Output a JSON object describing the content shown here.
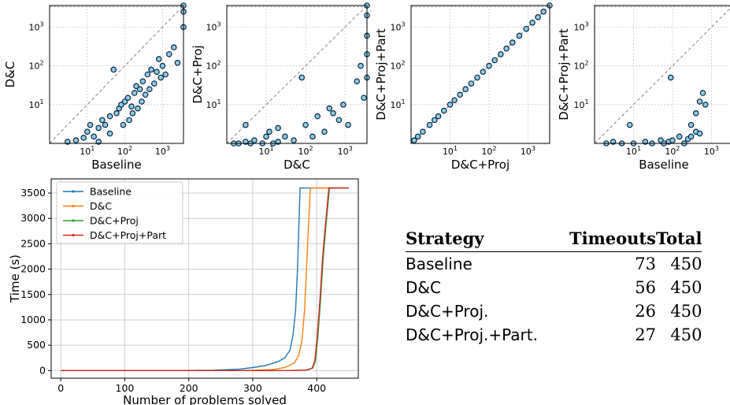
{
  "chart_data": [
    {
      "type": "scatter",
      "xlabel": "Baseline",
      "ylabel": "D&C",
      "scale": "log",
      "xlim": [
        1,
        3600
      ],
      "ylim": [
        1,
        3600
      ],
      "ticks": [
        "10^1",
        "10^2",
        "10^3"
      ],
      "diagonal": true,
      "points": [
        [
          3,
          1.1
        ],
        [
          5,
          1.2
        ],
        [
          8,
          1.4
        ],
        [
          10,
          2
        ],
        [
          12,
          3
        ],
        [
          15,
          1.5
        ],
        [
          20,
          2.5
        ],
        [
          25,
          4
        ],
        [
          30,
          3
        ],
        [
          40,
          5
        ],
        [
          50,
          80
        ],
        [
          60,
          6
        ],
        [
          70,
          8
        ],
        [
          80,
          10
        ],
        [
          100,
          12
        ],
        [
          120,
          15
        ],
        [
          150,
          9
        ],
        [
          180,
          20
        ],
        [
          200,
          30
        ],
        [
          250,
          25
        ],
        [
          300,
          40
        ],
        [
          400,
          60
        ],
        [
          500,
          80
        ],
        [
          700,
          70
        ],
        [
          800,
          150
        ],
        [
          1000,
          100
        ],
        [
          1500,
          200
        ],
        [
          2000,
          300
        ],
        [
          3600,
          1000
        ],
        [
          3600,
          2500
        ],
        [
          20,
          1.1
        ],
        [
          40,
          1.8
        ],
        [
          90,
          3
        ],
        [
          130,
          4
        ],
        [
          160,
          6
        ],
        [
          220,
          8
        ],
        [
          280,
          12
        ],
        [
          350,
          18
        ],
        [
          450,
          25
        ],
        [
          600,
          35
        ],
        [
          900,
          50
        ],
        [
          1200,
          60
        ],
        [
          2500,
          120
        ],
        [
          3600,
          3600
        ]
      ]
    },
    {
      "type": "scatter",
      "xlabel": "D&C",
      "ylabel": "D&C+Proj",
      "scale": "log",
      "xlim": [
        1,
        3600
      ],
      "ylim": [
        1,
        3600
      ],
      "ticks": [
        "10^1",
        "10^2",
        "10^3"
      ],
      "diagonal": true,
      "points": [
        [
          1.5,
          1
        ],
        [
          2,
          1
        ],
        [
          3,
          1.1
        ],
        [
          4,
          1
        ],
        [
          5,
          1.2
        ],
        [
          8,
          1
        ],
        [
          10,
          1.5
        ],
        [
          15,
          1
        ],
        [
          20,
          1.1
        ],
        [
          3,
          3
        ],
        [
          12,
          2
        ],
        [
          20,
          2.5
        ],
        [
          30,
          1.5
        ],
        [
          50,
          1.2
        ],
        [
          80,
          50
        ],
        [
          100,
          3
        ],
        [
          150,
          1.5
        ],
        [
          200,
          5
        ],
        [
          300,
          2
        ],
        [
          400,
          8
        ],
        [
          500,
          6
        ],
        [
          700,
          4
        ],
        [
          900,
          10
        ],
        [
          1200,
          3
        ],
        [
          2000,
          40
        ],
        [
          2500,
          100
        ],
        [
          3000,
          15
        ],
        [
          3600,
          600
        ],
        [
          3600,
          2000
        ],
        [
          3600,
          3600
        ],
        [
          3600,
          200
        ],
        [
          3600,
          50
        ]
      ]
    },
    {
      "type": "scatter",
      "xlabel": "D&C+Proj",
      "ylabel": "D&C+Proj+Part",
      "scale": "log",
      "xlim": [
        1,
        3600
      ],
      "ylim": [
        1,
        3600
      ],
      "ticks": [
        "10^1",
        "10^2",
        "10^3"
      ],
      "diagonal": true,
      "points": [
        [
          1.2,
          1.2
        ],
        [
          1.5,
          1.5
        ],
        [
          2,
          2
        ],
        [
          3,
          3
        ],
        [
          4,
          4
        ],
        [
          5,
          5
        ],
        [
          7,
          7
        ],
        [
          10,
          10
        ],
        [
          13,
          13
        ],
        [
          18,
          18
        ],
        [
          25,
          25
        ],
        [
          35,
          35
        ],
        [
          50,
          50
        ],
        [
          70,
          70
        ],
        [
          100,
          100
        ],
        [
          140,
          140
        ],
        [
          200,
          200
        ],
        [
          280,
          280
        ],
        [
          400,
          400
        ],
        [
          600,
          600
        ],
        [
          900,
          900
        ],
        [
          1300,
          1300
        ],
        [
          1800,
          1800
        ],
        [
          2500,
          2500
        ],
        [
          3600,
          3600
        ]
      ]
    },
    {
      "type": "scatter",
      "xlabel": "Baseline",
      "ylabel": "D&C+Proj+Part",
      "scale": "log",
      "xlim": [
        1,
        3600
      ],
      "ylim": [
        1,
        3600
      ],
      "ticks": [
        "10^1",
        "10^2",
        "10^3"
      ],
      "diagonal": true,
      "points": [
        [
          2,
          1
        ],
        [
          3,
          1.1
        ],
        [
          5,
          1
        ],
        [
          10,
          1
        ],
        [
          20,
          1.1
        ],
        [
          30,
          1
        ],
        [
          50,
          1.2
        ],
        [
          60,
          1
        ],
        [
          80,
          1.1
        ],
        [
          100,
          1.2
        ],
        [
          150,
          1.5
        ],
        [
          200,
          1
        ],
        [
          250,
          1.3
        ],
        [
          300,
          1.5
        ],
        [
          400,
          2
        ],
        [
          500,
          1.8
        ],
        [
          8,
          3
        ],
        [
          90,
          50
        ],
        [
          300,
          3
        ],
        [
          400,
          6
        ],
        [
          500,
          12
        ],
        [
          600,
          20
        ],
        [
          700,
          10
        ]
      ]
    },
    {
      "type": "line",
      "xlabel": "Number of problems solved",
      "ylabel": "Time (s)",
      "xlim": [
        -15,
        465
      ],
      "ylim": [
        -150,
        3780
      ],
      "xticks": [
        0,
        100,
        200,
        300,
        400
      ],
      "yticks": [
        0,
        500,
        1000,
        1500,
        2000,
        2500,
        3000,
        3500
      ],
      "grid": true,
      "legend_position": "top-left",
      "series": [
        {
          "name": "Baseline",
          "color": "#1f77b4",
          "points": [
            [
              0,
              0.5
            ],
            [
              200,
              2
            ],
            [
              240,
              8
            ],
            [
              280,
              30
            ],
            [
              300,
              60
            ],
            [
              320,
              100
            ],
            [
              340,
              180
            ],
            [
              350,
              250
            ],
            [
              358,
              400
            ],
            [
              363,
              700
            ],
            [
              367,
              1200
            ],
            [
              370,
              2000
            ],
            [
              372,
              2800
            ],
            [
              374,
              3600
            ],
            [
              450,
              3600
            ]
          ]
        },
        {
          "name": "D&C",
          "color": "#ff7f0e",
          "points": [
            [
              0,
              0.5
            ],
            [
              260,
              1
            ],
            [
              300,
              5
            ],
            [
              330,
              20
            ],
            [
              350,
              60
            ],
            [
              365,
              150
            ],
            [
              372,
              300
            ],
            [
              377,
              600
            ],
            [
              381,
              1200
            ],
            [
              384,
              2000
            ],
            [
              387,
              2800
            ],
            [
              390,
              3600
            ],
            [
              450,
              3600
            ]
          ]
        },
        {
          "name": "D&C+Proj",
          "color": "#2ca02c",
          "points": [
            [
              0,
              0.5
            ],
            [
              300,
              1
            ],
            [
              360,
              3
            ],
            [
              385,
              10
            ],
            [
              394,
              50
            ],
            [
              398,
              200
            ],
            [
              402,
              700
            ],
            [
              406,
              1400
            ],
            [
              410,
              2200
            ],
            [
              414,
              2800
            ],
            [
              420,
              3600
            ],
            [
              450,
              3600
            ]
          ]
        },
        {
          "name": "D&C+Proj+Part",
          "color": "#d62728",
          "points": [
            [
              0,
              0.5
            ],
            [
              300,
              1
            ],
            [
              360,
              3
            ],
            [
              384,
              10
            ],
            [
              393,
              50
            ],
            [
              397,
              200
            ],
            [
              401,
              700
            ],
            [
              405,
              1400
            ],
            [
              409,
              2200
            ],
            [
              413,
              2800
            ],
            [
              419,
              3600
            ],
            [
              450,
              3600
            ]
          ]
        }
      ]
    }
  ],
  "table": {
    "headers": [
      "Strategy",
      "Timeouts",
      "Total"
    ],
    "rows": [
      [
        "Baseline",
        "73",
        "450"
      ],
      [
        "D&C",
        "56",
        "450"
      ],
      [
        "D&C+Proj.",
        "26",
        "450"
      ],
      [
        "D&C+Proj.+Part.",
        "27",
        "450"
      ]
    ]
  }
}
